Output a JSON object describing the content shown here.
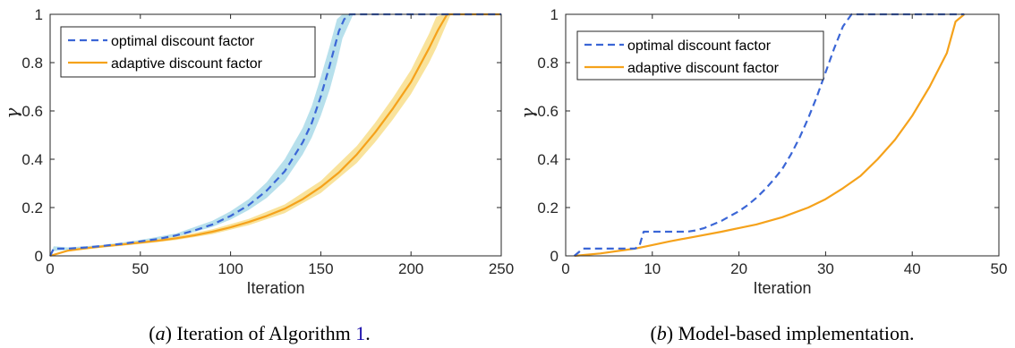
{
  "colors": {
    "optimal": "#3b66d6",
    "adaptive": "#f5a21b",
    "optimal_band": "#9fd6e6",
    "adaptive_band": "#f8dc83",
    "axis": "#262626",
    "caption_ref": "#1a0dab"
  },
  "chart_data": [
    {
      "type": "line",
      "caption": {
        "prefix": "(",
        "letter": "a",
        "suffix": ") Iteration of Algorithm ",
        "ref": "1",
        "end": "."
      },
      "xlabel": "Iteration",
      "ylabel": "γ",
      "xlim": [
        0,
        250
      ],
      "ylim": [
        0,
        1
      ],
      "xticks": [
        "0",
        "50",
        "100",
        "150",
        "200",
        "250"
      ],
      "yticks": [
        "0",
        "0.2",
        "0.4",
        "0.6",
        "0.8",
        "1"
      ],
      "grid": false,
      "legend_position": "top-left",
      "series": [
        {
          "name": "optimal discount factor",
          "style": "dashed",
          "x": [
            0,
            2,
            5,
            10,
            20,
            30,
            40,
            50,
            60,
            70,
            80,
            90,
            100,
            110,
            120,
            130,
            140,
            145,
            150,
            155,
            160,
            163,
            166,
            170,
            250
          ],
          "y": [
            0,
            0.03,
            0.03,
            0.03,
            0.035,
            0.042,
            0.05,
            0.06,
            0.07,
            0.085,
            0.105,
            0.13,
            0.165,
            0.21,
            0.27,
            0.35,
            0.47,
            0.55,
            0.66,
            0.79,
            0.93,
            0.98,
            1,
            1,
            1
          ],
          "band": [
            [
              0,
              0,
              0
            ],
            [
              2,
              0.02,
              0.04
            ],
            [
              10,
              0.025,
              0.035
            ],
            [
              30,
              0.038,
              0.046
            ],
            [
              50,
              0.055,
              0.066
            ],
            [
              70,
              0.078,
              0.093
            ],
            [
              90,
              0.12,
              0.145
            ],
            [
              100,
              0.15,
              0.185
            ],
            [
              110,
              0.19,
              0.235
            ],
            [
              120,
              0.24,
              0.305
            ],
            [
              130,
              0.31,
              0.4
            ],
            [
              140,
              0.42,
              0.53
            ],
            [
              145,
              0.49,
              0.62
            ],
            [
              150,
              0.58,
              0.74
            ],
            [
              155,
              0.69,
              0.87
            ],
            [
              159,
              0.8,
              0.98
            ],
            [
              162,
              0.9,
              1
            ],
            [
              168,
              1,
              1
            ]
          ]
        },
        {
          "name": "adaptive discount factor",
          "style": "solid",
          "x": [
            0,
            10,
            20,
            30,
            40,
            50,
            60,
            70,
            80,
            90,
            100,
            110,
            120,
            130,
            140,
            150,
            160,
            170,
            180,
            190,
            200,
            205,
            210,
            215,
            220,
            250
          ],
          "y": [
            0,
            0.022,
            0.032,
            0.04,
            0.047,
            0.055,
            0.063,
            0.073,
            0.085,
            0.1,
            0.118,
            0.14,
            0.165,
            0.195,
            0.235,
            0.285,
            0.345,
            0.42,
            0.51,
            0.61,
            0.72,
            0.79,
            0.86,
            0.935,
            1,
            1
          ],
          "band": [
            [
              0,
              0,
              0
            ],
            [
              10,
              0.018,
              0.026
            ],
            [
              30,
              0.035,
              0.045
            ],
            [
              50,
              0.049,
              0.061
            ],
            [
              70,
              0.066,
              0.08
            ],
            [
              90,
              0.09,
              0.11
            ],
            [
              110,
              0.127,
              0.153
            ],
            [
              130,
              0.177,
              0.213
            ],
            [
              150,
              0.26,
              0.31
            ],
            [
              170,
              0.385,
              0.455
            ],
            [
              180,
              0.47,
              0.55
            ],
            [
              190,
              0.565,
              0.655
            ],
            [
              200,
              0.67,
              0.77
            ],
            [
              205,
              0.735,
              0.845
            ],
            [
              210,
              0.8,
              0.92
            ],
            [
              214,
              0.86,
              0.99
            ],
            [
              218,
              0.93,
              1
            ],
            [
              222,
              1,
              1
            ]
          ]
        }
      ]
    },
    {
      "type": "line",
      "caption": {
        "prefix": "(",
        "letter": "b",
        "suffix": ") Model-based implementation.",
        "ref": "",
        "end": ""
      },
      "xlabel": "Iteration",
      "ylabel": "γ",
      "xlim": [
        0,
        50
      ],
      "ylim": [
        0,
        1
      ],
      "xticks": [
        "0",
        "10",
        "20",
        "30",
        "40",
        "50"
      ],
      "yticks": [
        "0",
        "0.2",
        "0.4",
        "0.6",
        "0.8",
        "1"
      ],
      "grid": false,
      "legend_position": "top-left",
      "series": [
        {
          "name": "optimal discount factor",
          "style": "dashed",
          "x": [
            1,
            2,
            3,
            4,
            5,
            6,
            7,
            8,
            8.5,
            9,
            10,
            11,
            12,
            13,
            14,
            15,
            16,
            17,
            18,
            19,
            20,
            21,
            22,
            23,
            24,
            25,
            26,
            27,
            28,
            29,
            30,
            31,
            32,
            33,
            34,
            36,
            40,
            44,
            46
          ],
          "y": [
            0,
            0.03,
            0.03,
            0.03,
            0.03,
            0.03,
            0.03,
            0.03,
            0.04,
            0.1,
            0.1,
            0.1,
            0.1,
            0.1,
            0.1,
            0.105,
            0.115,
            0.13,
            0.145,
            0.165,
            0.185,
            0.21,
            0.24,
            0.275,
            0.315,
            0.36,
            0.42,
            0.49,
            0.57,
            0.66,
            0.76,
            0.86,
            0.95,
            1,
            1,
            1,
            1,
            1,
            1
          ]
        },
        {
          "name": "adaptive discount factor",
          "style": "solid",
          "x": [
            1,
            4,
            8,
            10,
            12,
            15,
            18,
            20,
            22,
            25,
            28,
            30,
            32,
            34,
            36,
            38,
            40,
            42,
            44,
            45,
            46
          ],
          "y": [
            0,
            0.01,
            0.03,
            0.045,
            0.06,
            0.08,
            0.1,
            0.115,
            0.13,
            0.16,
            0.2,
            0.235,
            0.28,
            0.33,
            0.4,
            0.48,
            0.58,
            0.7,
            0.84,
            0.97,
            1
          ]
        }
      ]
    }
  ]
}
